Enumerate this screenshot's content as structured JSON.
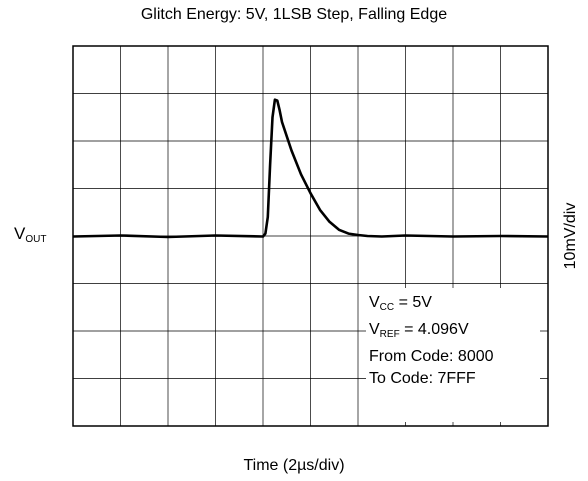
{
  "chart_data": {
    "type": "line",
    "title": "Glitch Energy: 5V, 1LSB Step, Falling Edge",
    "xlabel": "Time (2µs/div)",
    "ylabel_right": "10mV/div",
    "ylabel_left": {
      "main": "V",
      "sub": "OUT"
    },
    "x_divisions": 10,
    "y_divisions": 8,
    "grid": true,
    "xlim": [
      0,
      20
    ],
    "ylim": [
      -40,
      40
    ],
    "x_unit": "µs",
    "y_unit": "mV",
    "series": [
      {
        "x": [
          0,
          2,
          4,
          6,
          8,
          8.1,
          8.2,
          8.3,
          8.4,
          8.5,
          8.6,
          8.7,
          8.8,
          9.2,
          9.6,
          10.0,
          10.4,
          10.8,
          11.2,
          11.6,
          12.0,
          12.4,
          13,
          14,
          16,
          18,
          20
        ],
        "y": [
          -0.1,
          0.1,
          -0.2,
          0.1,
          -0.1,
          0.5,
          4,
          15,
          25,
          28.7,
          28.5,
          26.5,
          24,
          18,
          13,
          9,
          5.5,
          3,
          1.3,
          0.5,
          0.2,
          0,
          -0.1,
          0.1,
          -0.1,
          0,
          -0.1
        ]
      }
    ],
    "legend": {
      "vcc": {
        "main": "V",
        "sub": "CC",
        "rest": " = 5V"
      },
      "vref": {
        "main": "V",
        "sub": "REF",
        "rest": " = 4.096V"
      },
      "from_code": "From Code: 8000",
      "to_code": "To Code: 7FFF"
    },
    "colors": {
      "trace": "#000000",
      "grid": "#000000",
      "background": "#ffffff"
    }
  }
}
